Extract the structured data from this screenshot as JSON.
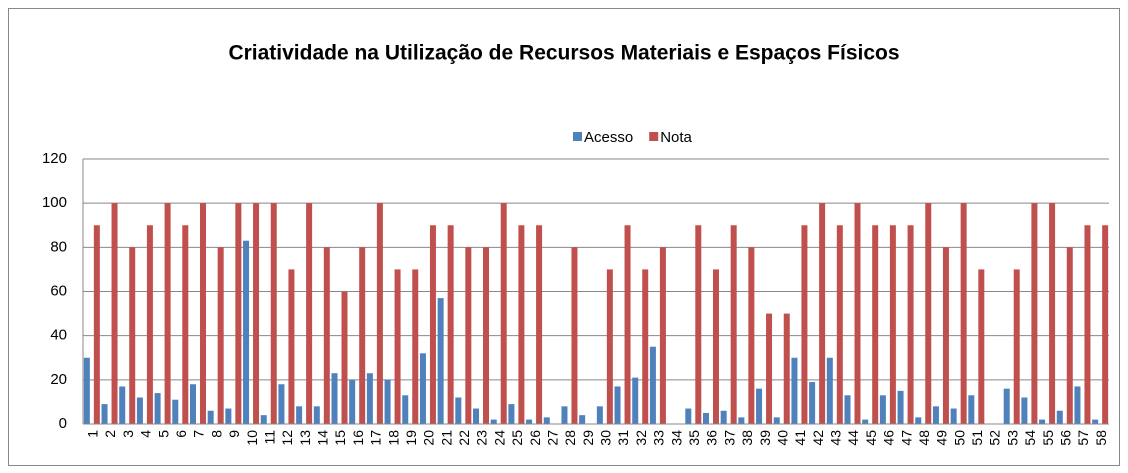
{
  "chart_data": {
    "type": "bar",
    "title": "Criatividade na Utilização de Recursos Materiais e Espaços Físicos",
    "categories": [
      "1",
      "2",
      "3",
      "4",
      "5",
      "6",
      "7",
      "8",
      "9",
      "10",
      "11",
      "12",
      "13",
      "14",
      "15",
      "16",
      "17",
      "18",
      "19",
      "20",
      "21",
      "22",
      "23",
      "24",
      "25",
      "26",
      "27",
      "28",
      "29",
      "30",
      "31",
      "32",
      "33",
      "34",
      "35",
      "36",
      "37",
      "38",
      "39",
      "40",
      "41",
      "42",
      "43",
      "44",
      "45",
      "46",
      "47",
      "48",
      "49",
      "50",
      "51",
      "52",
      "53",
      "54",
      "55",
      "56",
      "57",
      "58"
    ],
    "series": [
      {
        "name": "Acesso",
        "color": "#4f81bd",
        "values": [
          30,
          9,
          17,
          12,
          14,
          11,
          18,
          6,
          7,
          83,
          4,
          18,
          8,
          8,
          23,
          20,
          23,
          20,
          13,
          32,
          57,
          12,
          7,
          2,
          9,
          2,
          3,
          8,
          4,
          8,
          17,
          21,
          35,
          0,
          7,
          5,
          6,
          3,
          16,
          3,
          30,
          19,
          30,
          13,
          2,
          13,
          15,
          3,
          8,
          7,
          13,
          0,
          16,
          12,
          2,
          6,
          17,
          2
        ]
      },
      {
        "name": "Nota",
        "color": "#c0504d",
        "values": [
          90,
          100,
          80,
          90,
          100,
          90,
          100,
          80,
          100,
          100,
          100,
          70,
          100,
          80,
          60,
          80,
          100,
          70,
          70,
          90,
          90,
          80,
          80,
          100,
          90,
          90,
          0,
          80,
          0,
          70,
          90,
          70,
          80,
          0,
          90,
          70,
          90,
          80,
          50,
          50,
          90,
          100,
          90,
          100,
          90,
          90,
          90,
          100,
          80,
          100,
          70,
          0,
          70,
          100,
          100,
          80,
          90,
          90
        ]
      }
    ],
    "ylim": [
      0,
      120
    ],
    "yticks": [
      0,
      20,
      40,
      60,
      80,
      100,
      120
    ],
    "grid": true,
    "legend": "top"
  }
}
